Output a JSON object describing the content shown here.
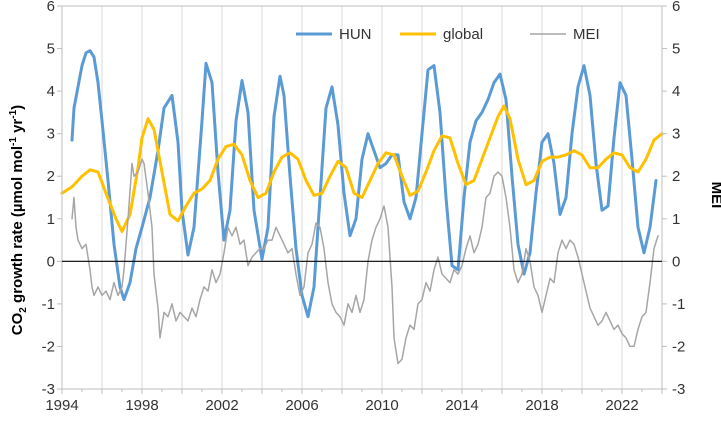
{
  "chart_data": {
    "type": "line",
    "title": "",
    "xlabel": "",
    "ylabel_left": {
      "main": "CO",
      "sub": "2",
      "mid": " growth rate (µmol mol",
      "sup1": "-1",
      "mid2": " yr",
      "sup2": "-1",
      "end": ")"
    },
    "ylabel_right": "MEI",
    "xlim": [
      1994,
      2024
    ],
    "ylim": [
      -3,
      6
    ],
    "y2lim": [
      -3,
      6
    ],
    "x_ticks": [
      1994,
      1998,
      2002,
      2006,
      2010,
      2014,
      2018,
      2022
    ],
    "y_ticks": [
      -3,
      -2,
      -1,
      0,
      1,
      2,
      3,
      4,
      5,
      6
    ],
    "grid": "vertical",
    "legend_position": "top-right",
    "zero_line": true,
    "series": [
      {
        "name": "HUN",
        "color": "#5b9bd5",
        "width": 3,
        "x": [
          1994.5,
          1994.6,
          1994.8,
          1995.0,
          1995.2,
          1995.4,
          1995.6,
          1995.8,
          1996.0,
          1996.3,
          1996.6,
          1996.9,
          1997.1,
          1997.4,
          1997.7,
          1998.0,
          1998.4,
          1998.8,
          1999.1,
          1999.5,
          1999.8,
          2000.0,
          2000.3,
          2000.6,
          2001.0,
          2001.2,
          2001.5,
          2001.8,
          2002.1,
          2002.4,
          2002.7,
          2003.0,
          2003.3,
          2003.6,
          2004.0,
          2004.3,
          2004.6,
          2004.9,
          2005.1,
          2005.4,
          2005.7,
          2006.0,
          2006.3,
          2006.6,
          2006.9,
          2007.2,
          2007.5,
          2007.8,
          2008.1,
          2008.4,
          2008.7,
          2009.0,
          2009.3,
          2009.6,
          2009.9,
          2010.2,
          2010.5,
          2010.8,
          2011.1,
          2011.4,
          2011.7,
          2012.0,
          2012.3,
          2012.6,
          2012.9,
          2013.2,
          2013.5,
          2013.8,
          2014.1,
          2014.4,
          2014.7,
          2015.0,
          2015.3,
          2015.6,
          2015.9,
          2016.2,
          2016.5,
          2016.8,
          2017.1,
          2017.4,
          2017.7,
          2018.0,
          2018.3,
          2018.6,
          2018.9,
          2019.2,
          2019.5,
          2019.8,
          2020.1,
          2020.4,
          2020.7,
          2021.0,
          2021.3,
          2021.6,
          2021.9,
          2022.2,
          2022.5,
          2022.8,
          2023.1,
          2023.4,
          2023.7
        ],
        "y": [
          2.85,
          3.6,
          4.1,
          4.6,
          4.9,
          4.95,
          4.8,
          4.2,
          3.3,
          1.9,
          0.4,
          -0.6,
          -0.9,
          -0.5,
          0.3,
          0.8,
          1.5,
          2.6,
          3.6,
          3.9,
          2.8,
          1.2,
          0.15,
          0.8,
          3.3,
          4.65,
          4.2,
          2.1,
          0.5,
          1.2,
          3.3,
          4.25,
          3.5,
          1.2,
          0.05,
          0.8,
          3.4,
          4.35,
          3.9,
          2.0,
          0.3,
          -0.8,
          -1.3,
          -0.6,
          1.5,
          3.6,
          4.1,
          3.2,
          1.6,
          0.6,
          1.0,
          2.4,
          3.0,
          2.6,
          2.2,
          2.3,
          2.5,
          2.5,
          1.4,
          1.0,
          1.5,
          3.0,
          4.5,
          4.6,
          3.5,
          1.5,
          -0.1,
          -0.2,
          1.5,
          2.8,
          3.3,
          3.5,
          3.8,
          4.2,
          4.4,
          3.8,
          2.0,
          0.4,
          -0.3,
          0.2,
          1.6,
          2.8,
          3.0,
          2.3,
          1.1,
          1.5,
          3.0,
          4.1,
          4.6,
          3.9,
          2.3,
          1.2,
          1.3,
          2.9,
          4.2,
          3.9,
          2.4,
          0.8,
          0.2,
          0.8,
          1.9
        ]
      },
      {
        "name": "global",
        "color": "#ffc000",
        "width": 3,
        "x": [
          1994.0,
          1994.5,
          1995.0,
          1995.4,
          1995.8,
          1996.2,
          1996.7,
          1997.0,
          1997.4,
          1997.8,
          1998.0,
          1998.3,
          1998.6,
          1999.0,
          1999.4,
          1999.8,
          2000.2,
          2000.6,
          2001.0,
          2001.4,
          2001.8,
          2002.2,
          2002.6,
          2003.0,
          2003.4,
          2003.8,
          2004.2,
          2004.6,
          2005.0,
          2005.4,
          2005.8,
          2006.2,
          2006.6,
          2007.0,
          2007.4,
          2007.8,
          2008.2,
          2008.6,
          2009.0,
          2009.4,
          2009.8,
          2010.2,
          2010.6,
          2011.0,
          2011.4,
          2011.8,
          2012.2,
          2012.6,
          2013.0,
          2013.4,
          2013.8,
          2014.2,
          2014.6,
          2015.0,
          2015.4,
          2015.8,
          2016.1,
          2016.4,
          2016.8,
          2017.2,
          2017.6,
          2018.0,
          2018.4,
          2018.8,
          2019.2,
          2019.6,
          2020.0,
          2020.4,
          2020.8,
          2021.2,
          2021.6,
          2022.0,
          2022.4,
          2022.8,
          2023.2,
          2023.6,
          2024.0
        ],
        "y": [
          1.6,
          1.75,
          2.0,
          2.15,
          2.1,
          1.6,
          1.0,
          0.7,
          1.1,
          2.2,
          2.9,
          3.35,
          3.1,
          2.1,
          1.1,
          0.95,
          1.3,
          1.6,
          1.7,
          1.9,
          2.4,
          2.7,
          2.75,
          2.5,
          1.9,
          1.5,
          1.6,
          2.1,
          2.45,
          2.55,
          2.4,
          1.9,
          1.55,
          1.6,
          2.0,
          2.35,
          2.2,
          1.6,
          1.5,
          1.9,
          2.3,
          2.55,
          2.5,
          2.0,
          1.55,
          1.65,
          2.1,
          2.6,
          2.95,
          2.9,
          2.3,
          1.8,
          1.9,
          2.4,
          2.9,
          3.4,
          3.65,
          3.35,
          2.4,
          1.8,
          1.9,
          2.35,
          2.45,
          2.45,
          2.5,
          2.6,
          2.5,
          2.2,
          2.2,
          2.4,
          2.55,
          2.5,
          2.2,
          2.1,
          2.4,
          2.85,
          3.0
        ]
      },
      {
        "name": "MEI",
        "color": "#a6a6a6",
        "width": 1.5,
        "axis": "right",
        "x": [
          1994.5,
          1994.6,
          1994.7,
          1994.8,
          1995.0,
          1995.2,
          1995.4,
          1995.5,
          1995.6,
          1995.8,
          1996.0,
          1996.2,
          1996.4,
          1996.6,
          1996.8,
          1997.0,
          1997.1,
          1997.3,
          1997.5,
          1997.6,
          1997.8,
          1998.0,
          1998.1,
          1998.3,
          1998.5,
          1998.6,
          1998.8,
          1998.9,
          1999.1,
          1999.3,
          1999.5,
          1999.7,
          1999.9,
          2000.1,
          2000.3,
          2000.5,
          2000.7,
          2000.9,
          2001.1,
          2001.3,
          2001.5,
          2001.7,
          2001.9,
          2002.1,
          2002.3,
          2002.5,
          2002.7,
          2002.9,
          2003.1,
          2003.3,
          2003.5,
          2003.7,
          2003.9,
          2004.1,
          2004.3,
          2004.5,
          2004.7,
          2004.9,
          2005.1,
          2005.3,
          2005.5,
          2005.7,
          2005.9,
          2006.1,
          2006.3,
          2006.5,
          2006.7,
          2006.9,
          2007.1,
          2007.3,
          2007.5,
          2007.7,
          2007.9,
          2008.1,
          2008.3,
          2008.5,
          2008.7,
          2008.9,
          2009.1,
          2009.3,
          2009.5,
          2009.7,
          2009.9,
          2010.1,
          2010.3,
          2010.5,
          2010.6,
          2010.8,
          2011.0,
          2011.2,
          2011.4,
          2011.6,
          2011.8,
          2012.0,
          2012.2,
          2012.4,
          2012.6,
          2012.8,
          2013.0,
          2013.2,
          2013.4,
          2013.6,
          2013.8,
          2014.0,
          2014.2,
          2014.4,
          2014.6,
          2014.8,
          2015.0,
          2015.2,
          2015.4,
          2015.6,
          2015.8,
          2016.0,
          2016.2,
          2016.4,
          2016.6,
          2016.8,
          2017.0,
          2017.2,
          2017.4,
          2017.6,
          2017.8,
          2018.0,
          2018.2,
          2018.4,
          2018.6,
          2018.8,
          2019.0,
          2019.2,
          2019.4,
          2019.6,
          2019.8,
          2020.0,
          2020.2,
          2020.4,
          2020.6,
          2020.8,
          2021.0,
          2021.2,
          2021.4,
          2021.6,
          2021.8,
          2022.0,
          2022.2,
          2022.4,
          2022.6,
          2022.8,
          2023.0,
          2023.2,
          2023.4,
          2023.6,
          2023.8
        ],
        "y": [
          1.0,
          1.5,
          0.8,
          0.5,
          0.3,
          0.4,
          -0.2,
          -0.6,
          -0.8,
          -0.6,
          -0.8,
          -0.7,
          -0.9,
          -0.5,
          -0.8,
          -0.6,
          -0.2,
          1.0,
          2.3,
          2.0,
          2.1,
          2.4,
          2.3,
          1.6,
          0.8,
          -0.3,
          -1.1,
          -1.8,
          -1.2,
          -1.3,
          -1.0,
          -1.4,
          -1.2,
          -1.3,
          -1.4,
          -1.1,
          -1.3,
          -0.9,
          -0.6,
          -0.7,
          -0.2,
          -0.5,
          -0.3,
          0.2,
          0.8,
          0.6,
          0.8,
          0.4,
          0.5,
          -0.1,
          0.1,
          0.2,
          0.3,
          0.3,
          0.5,
          0.5,
          0.8,
          0.6,
          0.4,
          0.2,
          0.3,
          -0.3,
          -0.8,
          -0.6,
          0.2,
          0.4,
          0.9,
          0.8,
          0.3,
          -0.5,
          -1.0,
          -1.2,
          -1.3,
          -1.5,
          -1.0,
          -1.2,
          -0.8,
          -1.2,
          -0.9,
          0.0,
          0.5,
          0.8,
          1.0,
          1.3,
          0.8,
          -0.6,
          -1.8,
          -2.4,
          -2.3,
          -1.8,
          -1.5,
          -1.6,
          -1.0,
          -0.9,
          -0.5,
          -0.7,
          -0.2,
          0.1,
          -0.3,
          -0.4,
          -0.5,
          -0.2,
          -0.3,
          -0.1,
          0.3,
          0.6,
          0.2,
          0.4,
          0.8,
          1.5,
          1.6,
          2.0,
          2.1,
          2.0,
          1.5,
          0.8,
          -0.2,
          -0.5,
          -0.3,
          0.3,
          0.0,
          -0.6,
          -0.8,
          -1.2,
          -0.8,
          -0.4,
          -0.5,
          0.2,
          0.5,
          0.3,
          0.5,
          0.4,
          0.1,
          -0.3,
          -0.7,
          -1.1,
          -1.3,
          -1.5,
          -1.4,
          -1.2,
          -1.4,
          -1.6,
          -1.5,
          -1.7,
          -1.8,
          -2.0,
          -2.0,
          -1.6,
          -1.3,
          -1.2,
          -0.5,
          0.3,
          0.6
        ]
      }
    ]
  }
}
